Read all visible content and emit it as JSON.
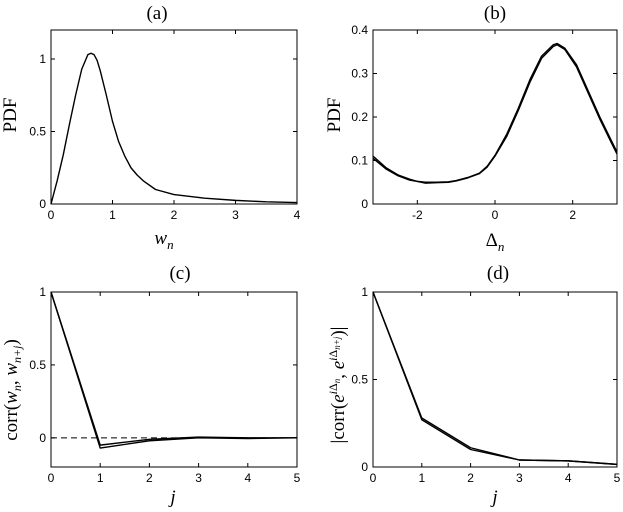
{
  "chart_data": [
    {
      "type": "line",
      "title": "(a)",
      "xlabel": "w_n",
      "ylabel": "PDF",
      "xlim": [
        0,
        4
      ],
      "ylim": [
        0,
        1.2
      ],
      "xticks": [
        "0",
        "1",
        "2",
        "3",
        "4"
      ],
      "yticks": [
        "0",
        "0.5",
        "1"
      ],
      "xtick_values": [
        0,
        1,
        2,
        3,
        4
      ],
      "ytick_values": [
        0,
        0.5,
        1
      ],
      "series": [
        {
          "x": [
            0,
            0.1,
            0.2,
            0.3,
            0.4,
            0.5,
            0.6,
            0.65,
            0.7,
            0.75,
            0.8,
            0.9,
            1.0,
            1.1,
            1.2,
            1.3,
            1.4,
            1.5,
            1.7,
            2.0,
            2.5,
            3.0,
            3.5,
            4.0
          ],
          "y": [
            0,
            0.16,
            0.34,
            0.55,
            0.75,
            0.93,
            1.03,
            1.04,
            1.03,
            0.99,
            0.92,
            0.75,
            0.57,
            0.43,
            0.33,
            0.25,
            0.2,
            0.16,
            0.1,
            0.065,
            0.04,
            0.025,
            0.015,
            0.01
          ]
        }
      ]
    },
    {
      "type": "line",
      "title": "(b)",
      "xlabel": "Δ_n",
      "ylabel": "PDF",
      "xlim": [
        -3.1416,
        3.1416
      ],
      "ylim": [
        0,
        0.4
      ],
      "xticks": [
        "-2",
        "0",
        "2"
      ],
      "yticks": [
        "0",
        "0.1",
        "0.2",
        "0.3",
        "0.4"
      ],
      "xtick_values": [
        -2,
        0,
        2
      ],
      "ytick_values": [
        0,
        0.1,
        0.2,
        0.3,
        0.4
      ],
      "series": [
        {
          "x": [
            -3.14,
            -2.8,
            -2.5,
            -2.2,
            -2.0,
            -1.8,
            -1.5,
            -1.2,
            -1.0,
            -0.7,
            -0.4,
            -0.2,
            0,
            0.3,
            0.6,
            0.9,
            1.2,
            1.5,
            1.6,
            1.8,
            2.1,
            2.4,
            2.7,
            3.0,
            3.14
          ],
          "y": [
            0.105,
            0.08,
            0.065,
            0.055,
            0.052,
            0.048,
            0.049,
            0.05,
            0.053,
            0.06,
            0.07,
            0.085,
            0.11,
            0.155,
            0.215,
            0.28,
            0.335,
            0.362,
            0.366,
            0.355,
            0.315,
            0.255,
            0.195,
            0.14,
            0.115
          ]
        },
        {
          "x": [
            -3.14,
            -2.8,
            -2.5,
            -2.2,
            -2.0,
            -1.8,
            -1.5,
            -1.2,
            -1.0,
            -0.7,
            -0.4,
            -0.2,
            0,
            0.3,
            0.6,
            0.9,
            1.2,
            1.5,
            1.6,
            1.8,
            2.1,
            2.4,
            2.7,
            3.0,
            3.14
          ],
          "y": [
            0.11,
            0.083,
            0.067,
            0.057,
            0.052,
            0.05,
            0.05,
            0.051,
            0.054,
            0.061,
            0.071,
            0.087,
            0.112,
            0.16,
            0.22,
            0.286,
            0.34,
            0.366,
            0.369,
            0.358,
            0.32,
            0.26,
            0.2,
            0.145,
            0.12
          ]
        }
      ]
    },
    {
      "type": "line",
      "title": "(c)",
      "xlabel": "j",
      "ylabel": "corr(w_n, w_{n+j})",
      "xlim": [
        0,
        5
      ],
      "ylim": [
        -0.2,
        1
      ],
      "xticks": [
        "0",
        "1",
        "2",
        "3",
        "4",
        "5"
      ],
      "yticks": [
        "0",
        "0.5",
        "1"
      ],
      "xtick_values": [
        0,
        1,
        2,
        3,
        4,
        5
      ],
      "ytick_values": [
        0,
        0.5,
        1
      ],
      "reference_line_y": 0,
      "series": [
        {
          "x": [
            0,
            1,
            2,
            3,
            4,
            5
          ],
          "y": [
            1,
            -0.07,
            -0.02,
            0,
            -0.005,
            0
          ]
        },
        {
          "x": [
            0,
            1,
            2,
            3,
            4,
            5
          ],
          "y": [
            1,
            -0.05,
            -0.01,
            0.005,
            0,
            0
          ]
        }
      ]
    },
    {
      "type": "line",
      "title": "(d)",
      "xlabel": "j",
      "ylabel": "|corr(e^{iΔ_n}, e^{iΔ_{n+j}})|",
      "xlim": [
        0,
        5
      ],
      "ylim": [
        0,
        1
      ],
      "xticks": [
        "0",
        "1",
        "2",
        "3",
        "4",
        "5"
      ],
      "yticks": [
        "0",
        "0.5",
        "1"
      ],
      "xtick_values": [
        0,
        1,
        2,
        3,
        4,
        5
      ],
      "ytick_values": [
        0,
        0.5,
        1
      ],
      "series": [
        {
          "x": [
            0,
            1,
            2,
            3,
            4,
            5
          ],
          "y": [
            1,
            0.27,
            0.1,
            0.04,
            0.035,
            0.015
          ]
        },
        {
          "x": [
            0,
            1,
            2,
            3,
            4,
            5
          ],
          "y": [
            1,
            0.28,
            0.11,
            0.04,
            0.035,
            0.015
          ]
        }
      ]
    }
  ]
}
